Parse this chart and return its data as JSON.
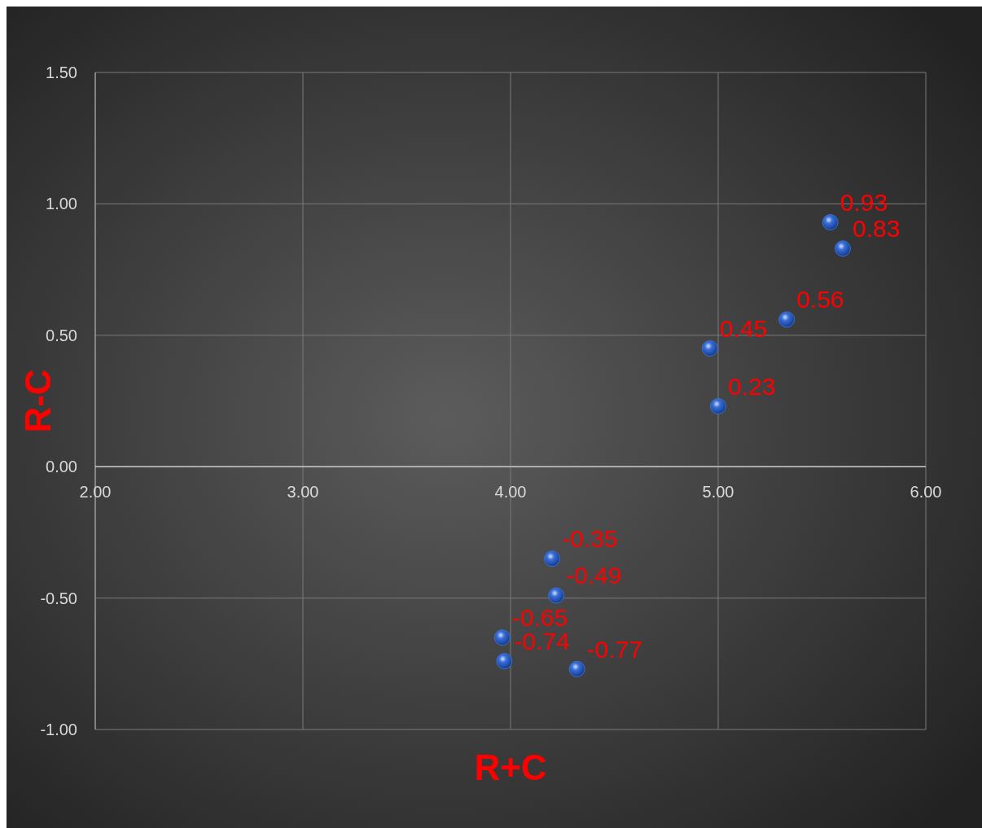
{
  "chart_data": {
    "type": "scatter",
    "xlabel": "R+C",
    "ylabel": "R-C",
    "x": [
      5.54,
      5.6,
      5.33,
      4.96,
      5.0,
      4.2,
      4.22,
      3.96,
      3.97,
      4.32
    ],
    "values": [
      0.93,
      0.83,
      0.56,
      0.45,
      0.23,
      -0.35,
      -0.49,
      -0.65,
      -0.74,
      -0.77
    ],
    "color": "#3a6fd8",
    "marker": "circle",
    "data_labels": true,
    "grid": true,
    "xlim": [
      2,
      6
    ],
    "ylim": [
      -1,
      1.5
    ],
    "xticks": [
      {
        "value": 2,
        "label": "2.00"
      },
      {
        "value": 3,
        "label": "3.00"
      },
      {
        "value": 4,
        "label": "4.00"
      },
      {
        "value": 5,
        "label": "5.00"
      },
      {
        "value": 6,
        "label": "6.00"
      }
    ],
    "yticks": [
      {
        "value": -1,
        "label": "-1.00"
      },
      {
        "value": -0.5,
        "label": "-0.50"
      },
      {
        "value": 0,
        "label": "0.00"
      },
      {
        "value": 0.5,
        "label": "0.50"
      },
      {
        "value": 1,
        "label": "1.00"
      },
      {
        "value": 1.5,
        "label": "1.50"
      }
    ]
  }
}
